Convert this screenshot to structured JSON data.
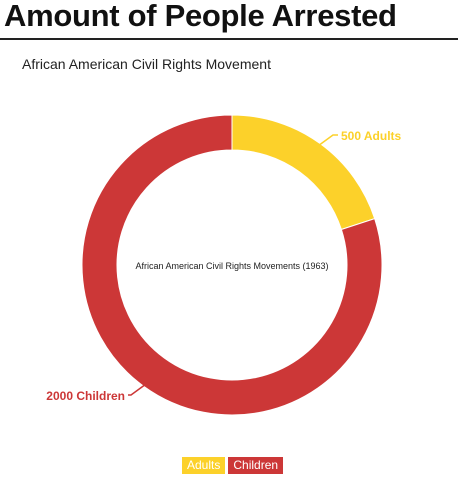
{
  "page": {
    "title": "Amount of People Arrested"
  },
  "chart_data": {
    "type": "pie",
    "title": "African American Civil Rights Movement",
    "center_label": "African American Civil Rights Movements (1963)",
    "series": [
      {
        "name": "Adults",
        "value": 500,
        "label": "500 Adults",
        "color": "#FCD12A"
      },
      {
        "name": "Children",
        "value": 2000,
        "label": "2000 Children",
        "color": "#CC3737"
      }
    ],
    "legend_placement": "bottom",
    "donut": true
  }
}
